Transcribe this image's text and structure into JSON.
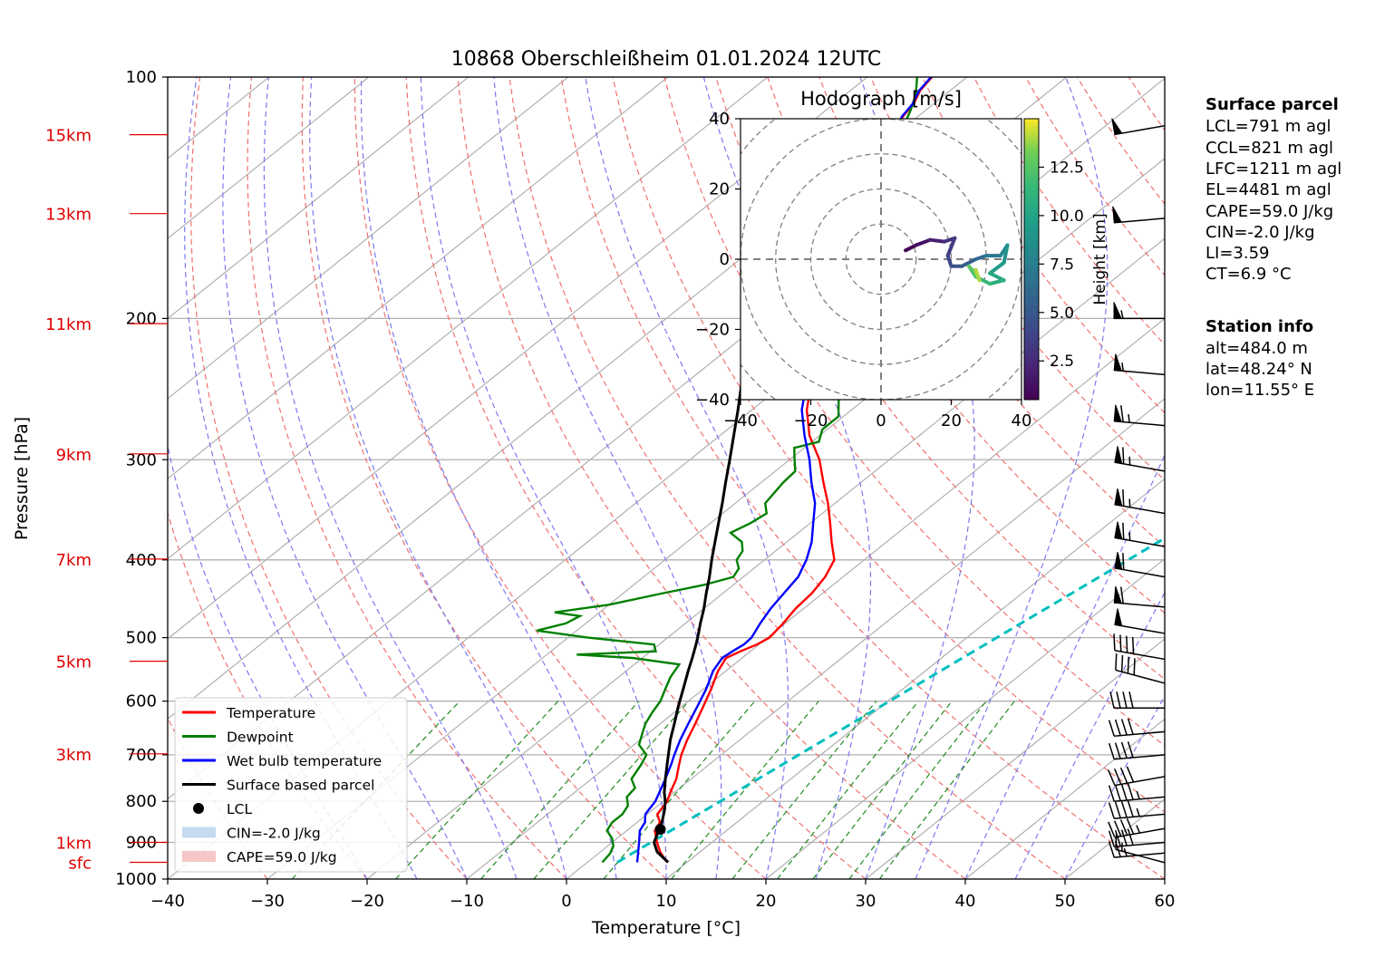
{
  "chart_data": {
    "type": "skewt",
    "title": "10868 Oberschleißheim 01.01.2024 12UTC",
    "xlabel": "Temperature [°C]",
    "ylabel": "Pressure [hPa]",
    "xlim": [
      -40,
      60
    ],
    "ylim": [
      1000,
      100
    ],
    "y_scale": "log",
    "grid": true,
    "x_ticks": [
      "−40",
      "−30",
      "−20",
      "−10",
      "0",
      "10",
      "20",
      "30",
      "40",
      "50",
      "60"
    ],
    "y_ticks": [
      {
        "p": 100,
        "label": "100"
      },
      {
        "p": 200,
        "label": "200"
      },
      {
        "p": 300,
        "label": "300"
      },
      {
        "p": 400,
        "label": "400"
      },
      {
        "p": 500,
        "label": "500"
      },
      {
        "p": 600,
        "label": "600"
      },
      {
        "p": 700,
        "label": "700"
      },
      {
        "p": 800,
        "label": "800"
      },
      {
        "p": 900,
        "label": "900"
      },
      {
        "p": 1000,
        "label": "1000"
      }
    ],
    "height_labels": [
      {
        "label": "15km",
        "p": 118
      },
      {
        "label": "13km",
        "p": 148
      },
      {
        "label": "11km",
        "p": 203
      },
      {
        "label": "9km",
        "p": 295
      },
      {
        "label": "7km",
        "p": 399
      },
      {
        "label": "5km",
        "p": 535
      },
      {
        "label": "3km",
        "p": 698
      },
      {
        "label": "1km",
        "p": 900
      },
      {
        "label": "sfc",
        "p": 953
      }
    ],
    "series": [
      {
        "name": "Temperature",
        "color": "#ff0000",
        "points": [
          [
            953,
            8.0
          ],
          [
            925,
            6.0
          ],
          [
            900,
            4.5
          ],
          [
            870,
            2.8
          ],
          [
            850,
            2.3
          ],
          [
            830,
            1.0
          ],
          [
            800,
            0.4
          ],
          [
            780,
            -0.4
          ],
          [
            750,
            -1.5
          ],
          [
            720,
            -3.0
          ],
          [
            700,
            -4.0
          ],
          [
            670,
            -5.3
          ],
          [
            640,
            -6.5
          ],
          [
            610,
            -7.8
          ],
          [
            580,
            -9.2
          ],
          [
            550,
            -10.8
          ],
          [
            530,
            -11.6
          ],
          [
            520,
            -11.0
          ],
          [
            510,
            -10.2
          ],
          [
            500,
            -9.8
          ],
          [
            480,
            -10.2
          ],
          [
            460,
            -10.8
          ],
          [
            440,
            -11.1
          ],
          [
            420,
            -11.8
          ],
          [
            400,
            -13.0
          ],
          [
            380,
            -15.5
          ],
          [
            360,
            -18.0
          ],
          [
            340,
            -20.7
          ],
          [
            320,
            -23.8
          ],
          [
            300,
            -27.0
          ],
          [
            280,
            -31.0
          ],
          [
            260,
            -34.5
          ],
          [
            240,
            -37.5
          ],
          [
            220,
            -40.5
          ],
          [
            200,
            -45.2
          ],
          [
            190,
            -47.0
          ],
          [
            180,
            -49.5
          ],
          [
            170,
            -51.8
          ],
          [
            160,
            -53.0
          ],
          [
            150,
            -54.7
          ],
          [
            140,
            -56.5
          ],
          [
            130,
            -58.0
          ],
          [
            123,
            -58.8
          ],
          [
            118,
            -60.3
          ],
          [
            115,
            -60.7
          ],
          [
            112,
            -61.5
          ],
          [
            108,
            -62.0
          ],
          [
            104,
            -63.0
          ],
          [
            100,
            -63.5
          ]
        ]
      },
      {
        "name": "Dewpoint",
        "color": "#008000",
        "points": [
          [
            953,
            1.5
          ],
          [
            930,
            1.2
          ],
          [
            910,
            0.6
          ],
          [
            890,
            -0.5
          ],
          [
            870,
            -2.0
          ],
          [
            850,
            -2.5
          ],
          [
            830,
            -2.5
          ],
          [
            810,
            -3.0
          ],
          [
            790,
            -4.2
          ],
          [
            770,
            -4.5
          ],
          [
            750,
            -6.0
          ],
          [
            720,
            -6.8
          ],
          [
            700,
            -7.5
          ],
          [
            680,
            -9.5
          ],
          [
            660,
            -10.5
          ],
          [
            640,
            -11.5
          ],
          [
            620,
            -12.2
          ],
          [
            600,
            -12.8
          ],
          [
            580,
            -13.8
          ],
          [
            560,
            -14.8
          ],
          [
            540,
            -15.5
          ],
          [
            530,
            -21.0
          ],
          [
            525,
            -27.0
          ],
          [
            520,
            -19.5
          ],
          [
            510,
            -20.5
          ],
          [
            500,
            -28.0
          ],
          [
            490,
            -34.0
          ],
          [
            480,
            -32.0
          ],
          [
            470,
            -31.5
          ],
          [
            465,
            -34.5
          ],
          [
            455,
            -30.0
          ],
          [
            440,
            -26.0
          ],
          [
            430,
            -23.0
          ],
          [
            420,
            -21.0
          ],
          [
            410,
            -21.5
          ],
          [
            400,
            -22.8
          ],
          [
            390,
            -23.3
          ],
          [
            380,
            -24.5
          ],
          [
            370,
            -26.8
          ],
          [
            360,
            -26.0
          ],
          [
            350,
            -25.6
          ],
          [
            340,
            -27.0
          ],
          [
            320,
            -27.8
          ],
          [
            310,
            -28.0
          ],
          [
            300,
            -29.5
          ],
          [
            290,
            -31.0
          ],
          [
            285,
            -29.3
          ],
          [
            275,
            -30.5
          ],
          [
            265,
            -30.5
          ],
          [
            250,
            -33.0
          ],
          [
            240,
            -34.0
          ],
          [
            230,
            -35.0
          ],
          [
            220,
            -36.5
          ],
          [
            210,
            -38.5
          ],
          [
            200,
            -40.0
          ],
          [
            195,
            -40.5
          ],
          [
            185,
            -41.0
          ],
          [
            175,
            -42.0
          ],
          [
            165,
            -43.0
          ],
          [
            155,
            -45.0
          ],
          [
            145,
            -46.5
          ],
          [
            135,
            -49.0
          ],
          [
            125,
            -53.0
          ],
          [
            118,
            -57.0
          ],
          [
            114,
            -60.5
          ],
          [
            110,
            -61.5
          ],
          [
            105,
            -63.0
          ],
          [
            100,
            -65.0
          ]
        ]
      },
      {
        "name": "Wet bulb temperature",
        "color": "#0000ff",
        "points": [
          [
            953,
            5.0
          ],
          [
            925,
            3.8
          ],
          [
            900,
            2.7
          ],
          [
            870,
            1.3
          ],
          [
            850,
            0.8
          ],
          [
            830,
            -0.2
          ],
          [
            800,
            -0.8
          ],
          [
            780,
            -1.5
          ],
          [
            750,
            -2.6
          ],
          [
            720,
            -3.8
          ],
          [
            700,
            -4.7
          ],
          [
            670,
            -6.0
          ],
          [
            640,
            -7.2
          ],
          [
            610,
            -8.4
          ],
          [
            580,
            -9.7
          ],
          [
            550,
            -11.3
          ],
          [
            530,
            -12.0
          ],
          [
            520,
            -11.8
          ],
          [
            510,
            -11.5
          ],
          [
            500,
            -11.6
          ],
          [
            480,
            -12.5
          ],
          [
            460,
            -13.3
          ],
          [
            440,
            -13.9
          ],
          [
            420,
            -14.5
          ],
          [
            400,
            -15.8
          ],
          [
            380,
            -17.5
          ],
          [
            360,
            -19.7
          ],
          [
            340,
            -22.0
          ],
          [
            320,
            -25.0
          ],
          [
            300,
            -28.0
          ],
          [
            280,
            -31.5
          ],
          [
            260,
            -35.0
          ],
          [
            240,
            -38.0
          ],
          [
            220,
            -41.0
          ],
          [
            200,
            -45.3
          ],
          [
            190,
            -47.2
          ],
          [
            180,
            -49.6
          ],
          [
            170,
            -51.9
          ],
          [
            160,
            -53.1
          ],
          [
            150,
            -54.8
          ],
          [
            140,
            -56.6
          ],
          [
            130,
            -58.1
          ],
          [
            123,
            -58.9
          ],
          [
            118,
            -60.4
          ],
          [
            115,
            -60.8
          ],
          [
            112,
            -61.6
          ],
          [
            108,
            -62.1
          ],
          [
            104,
            -63.1
          ],
          [
            100,
            -63.6
          ]
        ]
      },
      {
        "name": "Surface based parcel",
        "color": "#000000",
        "points": [
          [
            953,
            8.1
          ],
          [
            925,
            5.7
          ],
          [
            900,
            4.2
          ],
          [
            870,
            3.2
          ],
          [
            850,
            2.5
          ],
          [
            820,
            1.2
          ],
          [
            800,
            0.2
          ],
          [
            780,
            -1.0
          ],
          [
            750,
            -2.6
          ],
          [
            720,
            -4.2
          ],
          [
            700,
            -5.3
          ],
          [
            670,
            -7.0
          ],
          [
            640,
            -8.6
          ],
          [
            610,
            -10.3
          ],
          [
            580,
            -12.0
          ],
          [
            550,
            -13.8
          ],
          [
            530,
            -15.0
          ],
          [
            510,
            -16.3
          ],
          [
            500,
            -17.0
          ],
          [
            480,
            -18.5
          ],
          [
            460,
            -20.0
          ],
          [
            440,
            -21.7
          ],
          [
            420,
            -23.4
          ],
          [
            400,
            -25.3
          ],
          [
            380,
            -27.2
          ],
          [
            360,
            -29.2
          ],
          [
            340,
            -31.3
          ],
          [
            320,
            -33.6
          ],
          [
            300,
            -36.0
          ],
          [
            280,
            -38.6
          ],
          [
            260,
            -41.4
          ],
          [
            240,
            -44.5
          ],
          [
            220,
            -47.8
          ],
          [
            200,
            -51.5
          ]
        ]
      }
    ],
    "lcl": {
      "p": 867,
      "t": 3.2
    },
    "ccl_line": {
      "color": "#00bfbf",
      "points": [
        [
          953,
          3.0
        ],
        [
          100,
          38.0
        ]
      ]
    },
    "legend": {
      "placement": "lower-left",
      "entries": [
        {
          "label": "Temperature",
          "kind": "line",
          "color": "#ff0000"
        },
        {
          "label": "Dewpoint",
          "kind": "line",
          "color": "#008000"
        },
        {
          "label": "Wet bulb temperature",
          "kind": "line",
          "color": "#0000ff"
        },
        {
          "label": "Surface based parcel",
          "kind": "line",
          "color": "#000000"
        },
        {
          "label": "LCL",
          "kind": "dot",
          "color": "#000000"
        },
        {
          "label": "CIN=-2.0 J/kg",
          "kind": "patch",
          "color": "#c6dbef"
        },
        {
          "label": "CAPE=59.0 J/kg",
          "kind": "patch",
          "color": "#f7c6c6"
        }
      ]
    },
    "wind_barbs": [
      {
        "p": 954,
        "dir": 285,
        "spd_kt": 14
      },
      {
        "p": 928,
        "dir": 265,
        "spd_kt": 25
      },
      {
        "p": 900,
        "dir": 265,
        "spd_kt": 40
      },
      {
        "p": 865,
        "dir": 260,
        "spd_kt": 45
      },
      {
        "p": 830,
        "dir": 265,
        "spd_kt": 45
      },
      {
        "p": 790,
        "dir": 265,
        "spd_kt": 45
      },
      {
        "p": 745,
        "dir": 260,
        "spd_kt": 40
      },
      {
        "p": 700,
        "dir": 265,
        "spd_kt": 40
      },
      {
        "p": 655,
        "dir": 265,
        "spd_kt": 40
      },
      {
        "p": 612,
        "dir": 270,
        "spd_kt": 40
      },
      {
        "p": 570,
        "dir": 285,
        "spd_kt": 40
      },
      {
        "p": 532,
        "dir": 280,
        "spd_kt": 40
      },
      {
        "p": 494,
        "dir": 280,
        "spd_kt": 50
      },
      {
        "p": 458,
        "dir": 275,
        "spd_kt": 60
      },
      {
        "p": 420,
        "dir": 280,
        "spd_kt": 60
      },
      {
        "p": 385,
        "dir": 280,
        "spd_kt": 65
      },
      {
        "p": 350,
        "dir": 280,
        "spd_kt": 65
      },
      {
        "p": 310,
        "dir": 280,
        "spd_kt": 65
      },
      {
        "p": 272,
        "dir": 275,
        "spd_kt": 65
      },
      {
        "p": 235,
        "dir": 275,
        "spd_kt": 55
      },
      {
        "p": 200,
        "dir": 270,
        "spd_kt": 55
      },
      {
        "p": 150,
        "dir": 265,
        "spd_kt": 50
      },
      {
        "p": 115,
        "dir": 260,
        "spd_kt": 50
      }
    ],
    "hodograph": {
      "title": "Hodograph [m/s]",
      "xlim": [
        -40,
        40
      ],
      "ylim": [
        -40,
        40
      ],
      "ticks": [
        "−40",
        "−20",
        "0",
        "20",
        "40"
      ],
      "rings_ms": [
        10,
        20,
        30,
        40,
        50
      ],
      "colorbar_label": "Height [km]",
      "colorbar_ticks": [
        "2.5",
        "5.0",
        "7.5",
        "10.0",
        "12.5"
      ],
      "colorbar_range_km": [
        0.5,
        15
      ],
      "trace": [
        {
          "u": 7,
          "v": 2.5,
          "h": 0.5
        },
        {
          "u": 10,
          "v": 4,
          "h": 1.2
        },
        {
          "u": 14,
          "v": 5.5,
          "h": 2.0
        },
        {
          "u": 18,
          "v": 5,
          "h": 2.8
        },
        {
          "u": 21,
          "v": 6,
          "h": 3.3
        },
        {
          "u": 19,
          "v": 1,
          "h": 4.0
        },
        {
          "u": 20,
          "v": -2,
          "h": 4.6
        },
        {
          "u": 23,
          "v": -2,
          "h": 5.3
        },
        {
          "u": 27,
          "v": 0,
          "h": 6.1
        },
        {
          "u": 30,
          "v": 1,
          "h": 7.0
        },
        {
          "u": 34,
          "v": 1,
          "h": 8.0
        },
        {
          "u": 36,
          "v": 4,
          "h": 8.8
        },
        {
          "u": 35,
          "v": -1,
          "h": 9.5
        },
        {
          "u": 31,
          "v": -4,
          "h": 10.2
        },
        {
          "u": 35,
          "v": -6,
          "h": 10.8
        },
        {
          "u": 31,
          "v": -7,
          "h": 11.4
        },
        {
          "u": 27,
          "v": -5,
          "h": 12.0
        },
        {
          "u": 25,
          "v": -2,
          "h": 12.6
        },
        {
          "u": 27,
          "v": -4,
          "h": 13.2
        },
        {
          "u": 28,
          "v": -6,
          "h": 14.0
        },
        {
          "u": 27,
          "v": -3,
          "h": 14.8
        }
      ]
    }
  },
  "info_panel": {
    "parcel_title": "Surface parcel",
    "parcel_lines": [
      "LCL=791 m agl",
      "CCL=821 m agl",
      "LFC=1211 m agl",
      "EL=4481 m agl",
      "CAPE=59.0 J/kg",
      "CIN=-2.0 J/kg",
      "LI=3.59",
      "CT=6.9 °C"
    ],
    "station_title": "Station info",
    "station_lines": [
      "alt=484.0 m",
      "lat=48.24° N",
      "lon=11.55° E"
    ]
  }
}
